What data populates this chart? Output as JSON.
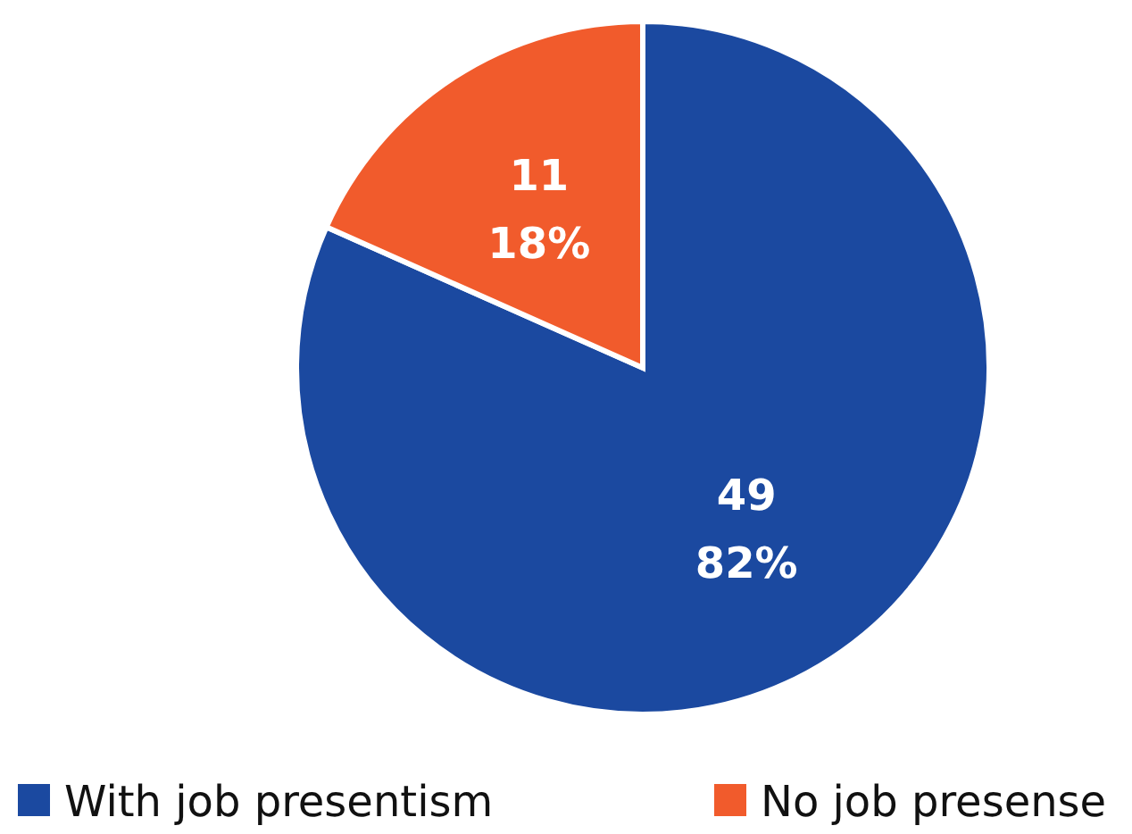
{
  "chart_data": {
    "type": "pie",
    "categories": [
      "With job presentism",
      "No job presense"
    ],
    "values": [
      49,
      11
    ],
    "colors": [
      "#1b49a0",
      "#f15b2c"
    ],
    "value_labels": [
      "49\n82%",
      "11\n18%"
    ],
    "legend": "bottom"
  }
}
